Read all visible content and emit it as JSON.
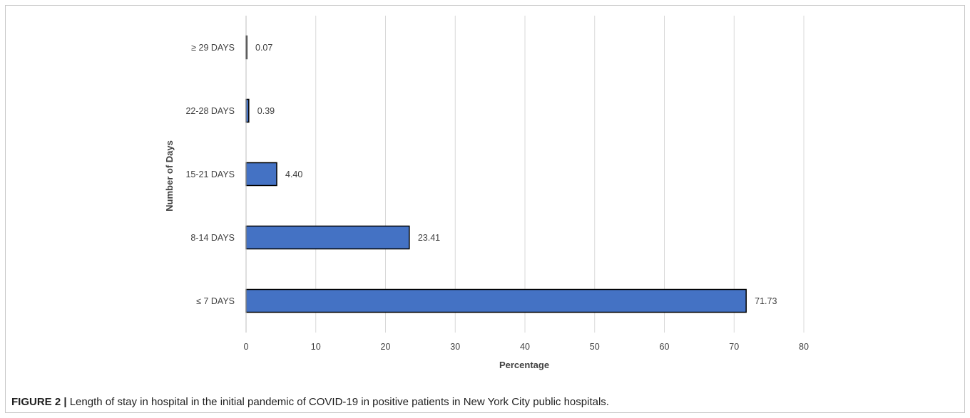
{
  "chart_data": {
    "type": "bar",
    "orientation": "horizontal",
    "categories": [
      "≤ 7 DAYS",
      "8-14 DAYS",
      "15-21 DAYS",
      "22-28 DAYS",
      "≥ 29 DAYS"
    ],
    "values": [
      71.73,
      23.41,
      4.4,
      0.39,
      0.07
    ],
    "value_labels": [
      "71.73",
      "23.41",
      "4.40",
      "0.39",
      "0.07"
    ],
    "xlabel": "Percentage",
    "ylabel": "Number of Days",
    "xlim": [
      0,
      80
    ],
    "xticks": [
      "0",
      "10",
      "20",
      "30",
      "40",
      "50",
      "60",
      "70",
      "80"
    ],
    "grid": "vertical",
    "bar_color": "#4472c4",
    "bar_edge_color": "#000000"
  },
  "caption": {
    "label": "FIGURE 2 |",
    "text": " Length of stay in hospital in the initial pandemic of COVID-19 in positive patients in New York City public hospitals."
  }
}
